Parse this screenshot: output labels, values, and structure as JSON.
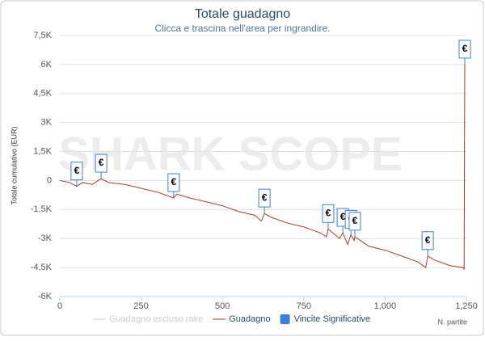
{
  "chart_data": {
    "type": "line",
    "title": "Totale guadagno",
    "subtitle": "Clicca e trascina nell'area per ingrandire.",
    "watermark": "SHARK SCOPE",
    "y_label": "Totale cumulativo (EUR)",
    "x_label": "N. partite",
    "xlim": [
      0,
      1250
    ],
    "xticks": [
      0,
      250,
      500,
      750,
      {
        "value": 1000,
        "label": "1,000"
      },
      {
        "value": 1250,
        "label": "1,250"
      }
    ],
    "ylim": [
      -6000,
      7500
    ],
    "yticks": [
      {
        "value": -6000,
        "label": "-6K"
      },
      {
        "value": -4500,
        "label": "-4,5K"
      },
      {
        "value": -3000,
        "label": "-3K"
      },
      {
        "value": -1500,
        "label": "-1,5K"
      },
      0,
      {
        "value": 1500,
        "label": "1,5K"
      },
      {
        "value": 3000,
        "label": "3K"
      },
      {
        "value": 4500,
        "label": "4,5K"
      },
      {
        "value": 6000,
        "label": "6K"
      },
      {
        "value": 7500,
        "label": "7,5K"
      }
    ],
    "grid": true,
    "series": [
      {
        "name": "Guadagno escluso rake",
        "color": "#cccccc",
        "visible": false
      },
      {
        "name": "Guadagno",
        "color": "#b03a2e",
        "visible": true,
        "x": [
          0,
          30,
          52,
          70,
          100,
          127,
          150,
          200,
          250,
          300,
          350,
          360,
          400,
          450,
          500,
          550,
          600,
          620,
          629,
          650,
          700,
          750,
          800,
          820,
          825,
          860,
          870,
          885,
          895,
          905,
          907,
          950,
          1000,
          1050,
          1100,
          1125,
          1131,
          1150,
          1200,
          1240,
          1243,
          1245
        ],
        "values": [
          0,
          -100,
          -300,
          -100,
          -200,
          100,
          -100,
          -200,
          -400,
          -600,
          -900,
          -700,
          -900,
          -1100,
          -1300,
          -1600,
          -1800,
          -2100,
          -1700,
          -1900,
          -2200,
          -2400,
          -2700,
          -2900,
          -2500,
          -3000,
          -2700,
          -3300,
          -2800,
          -3100,
          -2900,
          -3400,
          -3600,
          -3900,
          -4200,
          -4500,
          -3900,
          -4100,
          -4400,
          -4500,
          -4600,
          6000
        ]
      }
    ],
    "flags": {
      "name": "Vincite Significative",
      "color": "#3d7fd6",
      "label": "€",
      "x": [
        52,
        127,
        350,
        629,
        825,
        870,
        895,
        907,
        1131,
        1245
      ],
      "values": [
        -300,
        100,
        -900,
        -1700,
        -2500,
        -2700,
        -2800,
        -2900,
        -3900,
        6000
      ]
    }
  }
}
